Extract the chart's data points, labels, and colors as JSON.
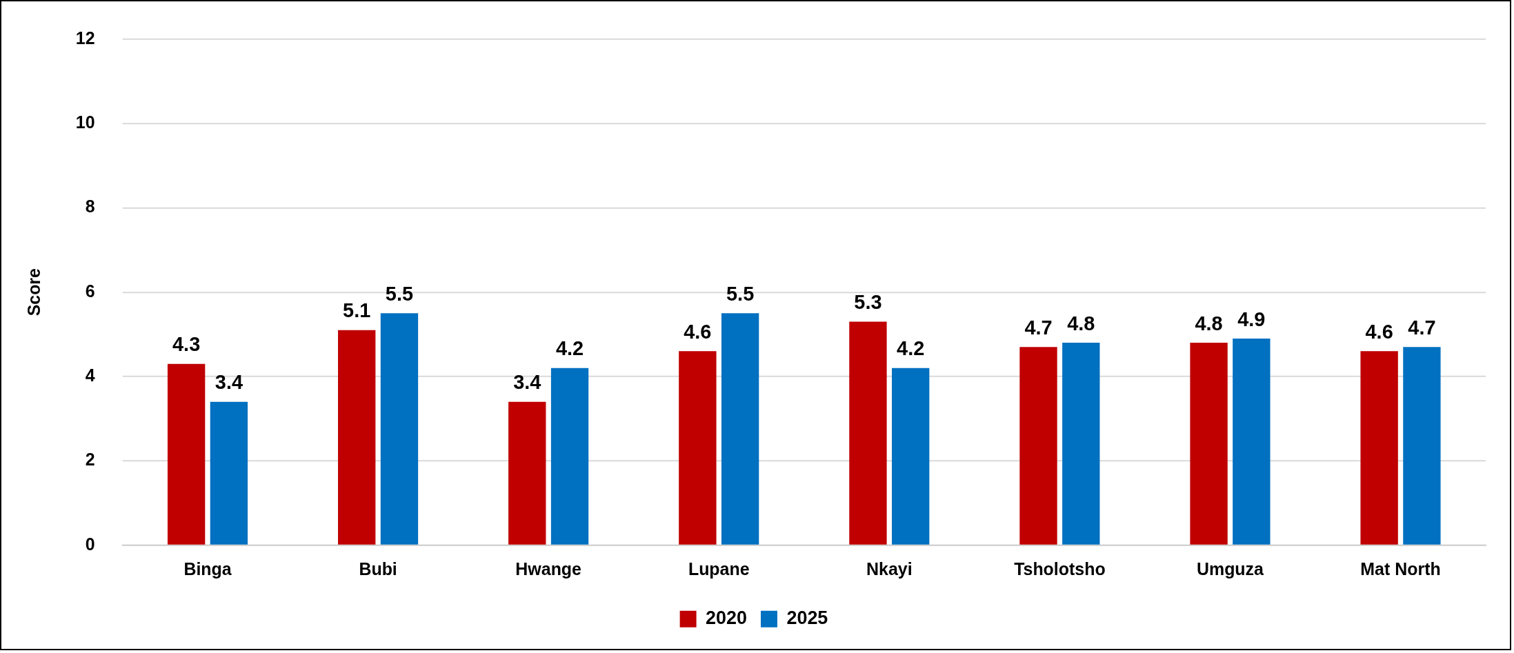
{
  "chart_data": {
    "type": "bar",
    "ylabel": "Score",
    "categories": [
      "Binga",
      "Bubi",
      "Hwange",
      "Lupane",
      "Nkayi",
      "Tsholotsho",
      "Umguza",
      "Mat North"
    ],
    "series": [
      {
        "name": "2020",
        "color": "#c00000",
        "values": [
          4.3,
          5.1,
          3.4,
          4.6,
          5.3,
          4.7,
          4.8,
          4.6
        ]
      },
      {
        "name": "2025",
        "color": "#0070c0",
        "values": [
          3.4,
          5.5,
          4.2,
          5.5,
          4.2,
          4.8,
          4.9,
          4.7
        ]
      }
    ],
    "ylim": [
      0,
      12
    ],
    "yticks": [
      0,
      2,
      4,
      6,
      8,
      10,
      12
    ],
    "grid": "y",
    "legend": "bottom",
    "data_labels": true
  }
}
